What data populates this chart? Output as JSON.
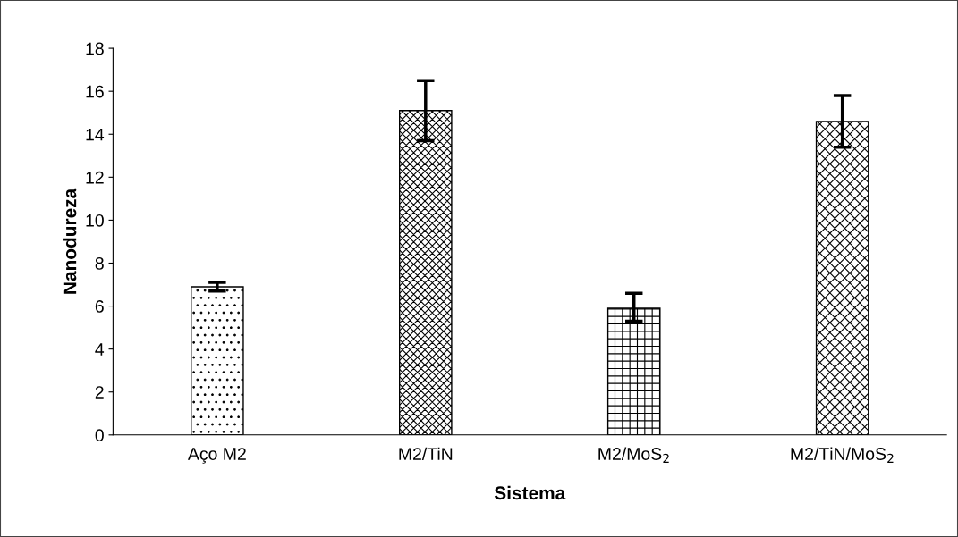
{
  "chart_data": {
    "type": "bar",
    "xlabel": "Sistema",
    "ylabel": "Nanodureza",
    "categories": [
      "Aço M2",
      "M2/TiN",
      "M2/MoS$_{2}$",
      "M2/TiN/MoS$_{2}$"
    ],
    "values": [
      6.9,
      15.1,
      5.9,
      14.6
    ],
    "errors": [
      [
        6.7,
        7.1
      ],
      [
        13.7,
        16.5
      ],
      [
        5.3,
        6.6
      ],
      [
        13.4,
        15.8
      ]
    ],
    "colors": [
      "#000000",
      "#000000",
      "#000000",
      "#000000"
    ],
    "ylim": [
      0,
      18
    ],
    "yticks": [
      0,
      2,
      4,
      6,
      8,
      10,
      12,
      14,
      16,
      18
    ],
    "grid": false
  }
}
